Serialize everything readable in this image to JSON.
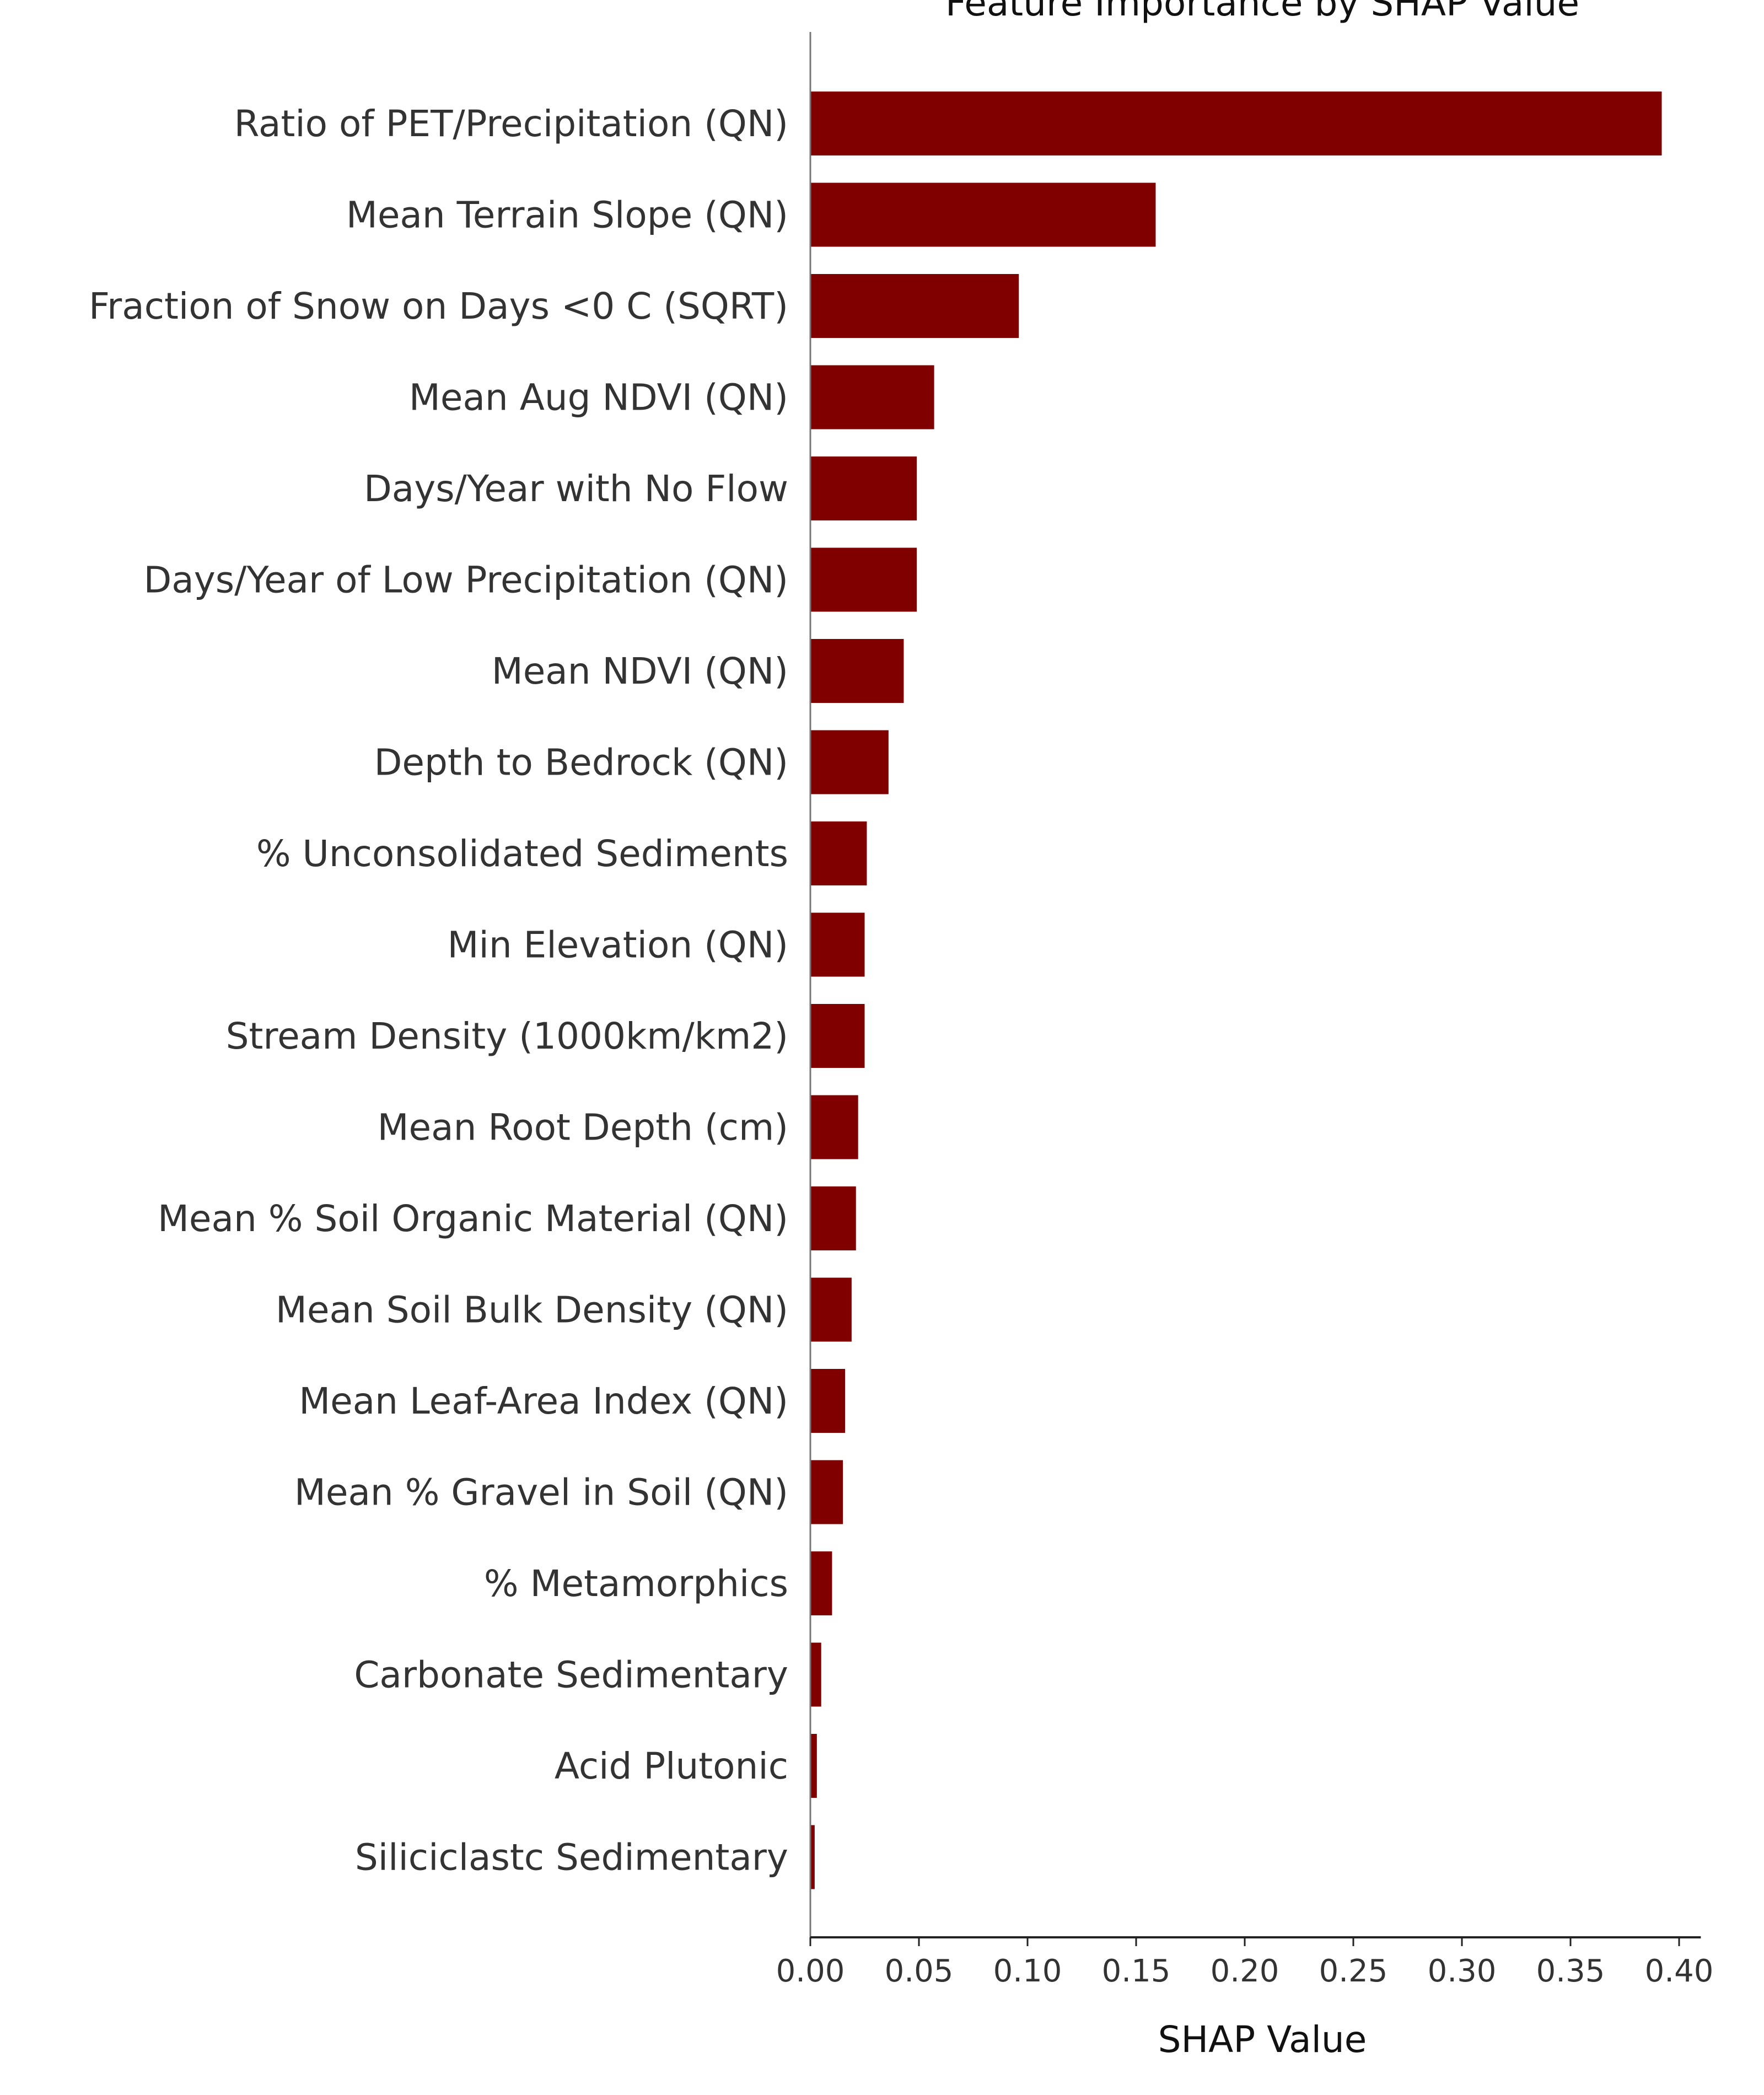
{
  "chart_data": {
    "type": "bar",
    "orientation": "horizontal",
    "title": "Feature Importance by SHAP Value",
    "xlabel": "SHAP Value",
    "ylabel": "",
    "xlim": [
      0.0,
      0.41
    ],
    "x_ticks": [
      "0.00",
      "0.05",
      "0.10",
      "0.15",
      "0.20",
      "0.25",
      "0.30",
      "0.35",
      "0.40"
    ],
    "grid": false,
    "bar_color": "#800000",
    "categories": [
      "Ratio of PET/Precipitation (QN)",
      "Mean Terrain Slope (QN)",
      "Fraction of Snow on Days <0 C (SQRT)",
      "Mean Aug NDVI (QN)",
      "Days/Year with No Flow",
      "Days/Year of Low Precipitation (QN)",
      "Mean NDVI (QN)",
      "Depth to Bedrock (QN)",
      "% Unconsolidated Sediments",
      "Min Elevation (QN)",
      "Stream Density (1000km/km2)",
      "Mean Root Depth (cm)",
      "Mean % Soil Organic Material (QN)",
      "Mean Soil Bulk Density (QN)",
      "Mean Leaf-Area Index (QN)",
      "Mean % Gravel in Soil (QN)",
      "% Metamorphics",
      "Carbonate Sedimentary",
      "Acid Plutonic",
      "Siliciclastc Sedimentary"
    ],
    "values": [
      0.392,
      0.159,
      0.096,
      0.057,
      0.049,
      0.049,
      0.043,
      0.036,
      0.026,
      0.025,
      0.025,
      0.022,
      0.021,
      0.019,
      0.016,
      0.015,
      0.01,
      0.005,
      0.003,
      0.002
    ]
  }
}
